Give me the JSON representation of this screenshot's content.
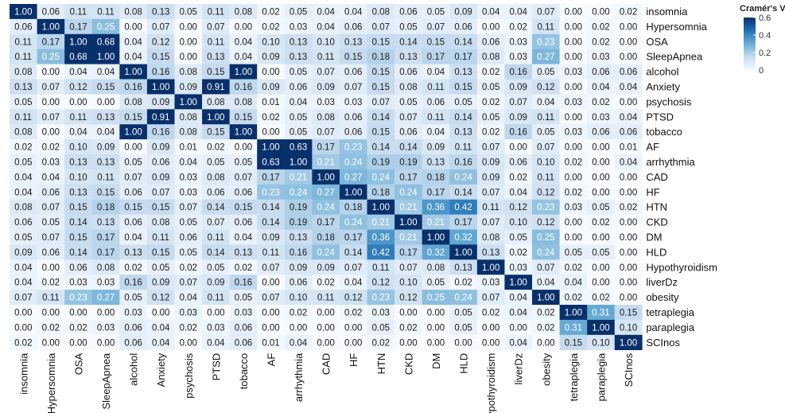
{
  "chart_data": {
    "type": "heatmap",
    "title": "",
    "xlabel": "",
    "ylabel": "",
    "labels": [
      "insomnia",
      "Hypersomnia",
      "OSA",
      "SleepApnea",
      "alcohol",
      "Anxiety",
      "psychosis",
      "PTSD",
      "tobacco",
      "AF",
      "arrhythmia",
      "CAD",
      "HF",
      "HTN",
      "CKD",
      "DM",
      "HLD",
      "Hypothyroidism",
      "liverDz",
      "obesity",
      "tetraplegia",
      "paraplegia",
      "SCInos"
    ],
    "value_range": [
      0,
      0.6
    ],
    "legend": {
      "title": "Cramér's V",
      "ticks": [
        "0.6",
        "0.4",
        "0.2",
        "0"
      ],
      "tick_values": [
        0.6,
        0.4,
        0.2,
        0
      ],
      "position": "top-right",
      "low_color": "#f7fbff",
      "high_color": "#08306b"
    },
    "matrix": [
      [
        "1.00",
        "0.06",
        "0.11",
        "0.11",
        "0.08",
        "0.13",
        "0.05",
        "0.11",
        "0.08",
        "0.02",
        "0.05",
        "0.04",
        "0.04",
        "0.08",
        "0.06",
        "0.05",
        "0.09",
        "0.04",
        "0.04",
        "0.07",
        "0.00",
        "0.00",
        "0.02"
      ],
      [
        "0.06",
        "1.00",
        "0.17",
        "0.25",
        "0.00",
        "0.07",
        "0.00",
        "0.07",
        "0.00",
        "0.02",
        "0.03",
        "0.04",
        "0.06",
        "0.07",
        "0.05",
        "0.07",
        "0.06",
        "0.00",
        "0.02",
        "0.11",
        "0.00",
        "0.02",
        "0.00"
      ],
      [
        "0.11",
        "0.17",
        "1.00",
        "0.68",
        "0.04",
        "0.12",
        "0.00",
        "0.11",
        "0.04",
        "0.10",
        "0.13",
        "0.10",
        "0.13",
        "0.15",
        "0.14",
        "0.15",
        "0.14",
        "0.06",
        "0.03",
        "0.23",
        "0.00",
        "0.02",
        "0.00"
      ],
      [
        "0.11",
        "0.25",
        "0.68",
        "1.00",
        "0.04",
        "0.15",
        "0.00",
        "0.13",
        "0.04",
        "0.09",
        "0.13",
        "0.11",
        "0.15",
        "0.18",
        "0.13",
        "0.17",
        "0.17",
        "0.08",
        "0.03",
        "0.27",
        "0.00",
        "0.03",
        "0.00"
      ],
      [
        "0.08",
        "0.00",
        "0.04",
        "0.04",
        "1.00",
        "0.16",
        "0.08",
        "0.15",
        "1.00",
        "0.00",
        "0.05",
        "0.07",
        "0.06",
        "0.15",
        "0.06",
        "0.04",
        "0.13",
        "0.02",
        "0.16",
        "0.05",
        "0.03",
        "0.06",
        "0.06"
      ],
      [
        "0.13",
        "0.07",
        "0.12",
        "0.15",
        "0.16",
        "1.00",
        "0.09",
        "0.91",
        "0.16",
        "0.09",
        "0.06",
        "0.09",
        "0.07",
        "0.15",
        "0.08",
        "0.11",
        "0.15",
        "0.05",
        "0.09",
        "0.12",
        "0.00",
        "0.04",
        "0.04"
      ],
      [
        "0.05",
        "0.00",
        "0.00",
        "0.00",
        "0.08",
        "0.09",
        "1.00",
        "0.08",
        "0.08",
        "0.01",
        "0.04",
        "0.03",
        "0.03",
        "0.07",
        "0.05",
        "0.06",
        "0.05",
        "0.02",
        "0.07",
        "0.04",
        "0.03",
        "0.02",
        "0.00"
      ],
      [
        "0.11",
        "0.07",
        "0.11",
        "0.13",
        "0.15",
        "0.91",
        "0.08",
        "1.00",
        "0.15",
        "0.02",
        "0.05",
        "0.08",
        "0.06",
        "0.14",
        "0.07",
        "0.11",
        "0.14",
        "0.05",
        "0.09",
        "0.11",
        "0.00",
        "0.03",
        "0.04"
      ],
      [
        "0.08",
        "0.00",
        "0.04",
        "0.04",
        "1.00",
        "0.16",
        "0.08",
        "0.15",
        "1.00",
        "0.00",
        "0.05",
        "0.07",
        "0.06",
        "0.15",
        "0.06",
        "0.04",
        "0.13",
        "0.02",
        "0.16",
        "0.05",
        "0.03",
        "0.06",
        "0.06"
      ],
      [
        "0.02",
        "0.02",
        "0.10",
        "0.09",
        "0.00",
        "0.09",
        "0.01",
        "0.02",
        "0.00",
        "1.00",
        "0.63",
        "0.17",
        "0.23",
        "0.14",
        "0.14",
        "0.09",
        "0.11",
        "0.07",
        "0.00",
        "0.07",
        "0.00",
        "0.00",
        "0.01"
      ],
      [
        "0.05",
        "0.03",
        "0.13",
        "0.13",
        "0.05",
        "0.06",
        "0.04",
        "0.05",
        "0.05",
        "0.63",
        "1.00",
        "0.21",
        "0.24",
        "0.19",
        "0.19",
        "0.13",
        "0.16",
        "0.09",
        "0.06",
        "0.10",
        "0.02",
        "0.00",
        "0.04"
      ],
      [
        "0.04",
        "0.04",
        "0.10",
        "0.11",
        "0.07",
        "0.09",
        "0.03",
        "0.08",
        "0.07",
        "0.17",
        "0.21",
        "1.00",
        "0.27",
        "0.24",
        "0.17",
        "0.18",
        "0.24",
        "0.09",
        "0.02",
        "0.11",
        "0.00",
        "0.00",
        "0.00"
      ],
      [
        "0.04",
        "0.06",
        "0.13",
        "0.15",
        "0.06",
        "0.07",
        "0.03",
        "0.06",
        "0.06",
        "0.23",
        "0.24",
        "0.27",
        "1.00",
        "0.18",
        "0.24",
        "0.17",
        "0.14",
        "0.07",
        "0.04",
        "0.12",
        "0.02",
        "0.00",
        "0.00"
      ],
      [
        "0.08",
        "0.07",
        "0.15",
        "0.18",
        "0.15",
        "0.15",
        "0.07",
        "0.14",
        "0.15",
        "0.14",
        "0.19",
        "0.24",
        "0.18",
        "1.00",
        "0.21",
        "0.36",
        "0.42",
        "0.11",
        "0.12",
        "0.23",
        "0.03",
        "0.05",
        "0.02"
      ],
      [
        "0.06",
        "0.05",
        "0.14",
        "0.13",
        "0.06",
        "0.08",
        "0.05",
        "0.07",
        "0.06",
        "0.14",
        "0.19",
        "0.17",
        "0.24",
        "0.21",
        "1.00",
        "0.21",
        "0.17",
        "0.07",
        "0.10",
        "0.12",
        "0.00",
        "0.02",
        "0.00"
      ],
      [
        "0.05",
        "0.07",
        "0.15",
        "0.17",
        "0.04",
        "0.11",
        "0.06",
        "0.11",
        "0.04",
        "0.09",
        "0.13",
        "0.18",
        "0.17",
        "0.36",
        "0.21",
        "1.00",
        "0.32",
        "0.08",
        "0.05",
        "0.25",
        "0.00",
        "0.00",
        "0.00"
      ],
      [
        "0.09",
        "0.06",
        "0.14",
        "0.17",
        "0.13",
        "0.15",
        "0.05",
        "0.14",
        "0.13",
        "0.11",
        "0.16",
        "0.24",
        "0.14",
        "0.42",
        "0.17",
        "0.32",
        "1.00",
        "0.13",
        "0.02",
        "0.24",
        "0.05",
        "0.05",
        "0.00"
      ],
      [
        "0.04",
        "0.00",
        "0.06",
        "0.08",
        "0.02",
        "0.05",
        "0.02",
        "0.05",
        "0.02",
        "0.07",
        "0.09",
        "0.09",
        "0.07",
        "0.11",
        "0.07",
        "0.08",
        "0.13",
        "1.00",
        "0.03",
        "0.07",
        "0.02",
        "0.00",
        "0.00"
      ],
      [
        "0.04",
        "0.02",
        "0.03",
        "0.03",
        "0.16",
        "0.09",
        "0.07",
        "0.09",
        "0.16",
        "0.00",
        "0.06",
        "0.02",
        "0.04",
        "0.12",
        "0.10",
        "0.05",
        "0.02",
        "0.03",
        "1.00",
        "0.04",
        "0.04",
        "0.00",
        "0.00"
      ],
      [
        "0.07",
        "0.11",
        "0.23",
        "0.27",
        "0.05",
        "0.12",
        "0.04",
        "0.11",
        "0.05",
        "0.07",
        "0.10",
        "0.11",
        "0.12",
        "0.23",
        "0.12",
        "0.25",
        "0.24",
        "0.07",
        "0.04",
        "1.00",
        "0.02",
        "0.02",
        "0.00"
      ],
      [
        "0.00",
        "0.00",
        "0.00",
        "0.00",
        "0.03",
        "0.00",
        "0.03",
        "0.00",
        "0.03",
        "0.00",
        "0.02",
        "0.00",
        "0.02",
        "0.03",
        "0.00",
        "0.00",
        "0.05",
        "0.02",
        "0.04",
        "0.02",
        "1.00",
        "0.31",
        "0.15"
      ],
      [
        "0.00",
        "0.02",
        "0.02",
        "0.03",
        "0.06",
        "0.04",
        "0.02",
        "0.03",
        "0.06",
        "0.00",
        "0.00",
        "0.00",
        "0.00",
        "0.05",
        "0.02",
        "0.00",
        "0.05",
        "0.00",
        "0.00",
        "0.02",
        "0.31",
        "1.00",
        "0.10"
      ],
      [
        "0.02",
        "0.00",
        "0.00",
        "0.00",
        "0.06",
        "0.04",
        "0.00",
        "0.04",
        "0.06",
        "0.01",
        "0.04",
        "0.00",
        "0.00",
        "0.02",
        "0.00",
        "0.00",
        "0.00",
        "0.00",
        "0.04",
        "0.00",
        "0.15",
        "0.10",
        "1.00"
      ]
    ]
  }
}
